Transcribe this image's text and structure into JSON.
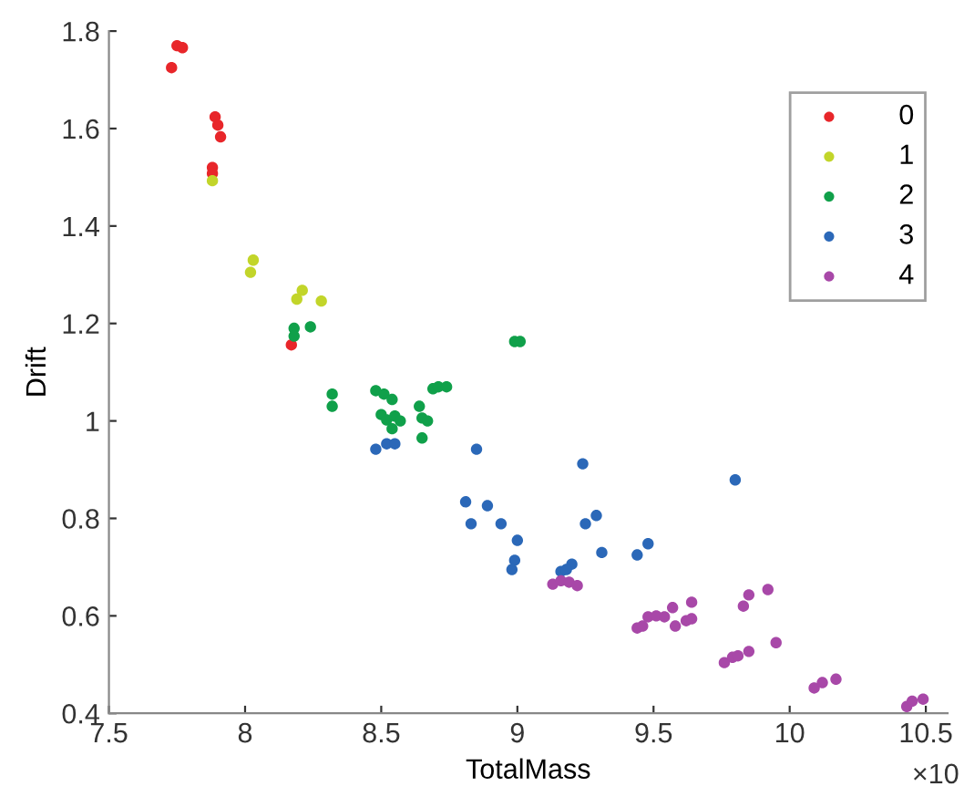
{
  "chart_data": {
    "type": "scatter",
    "xlabel": "TotalMass",
    "ylabel": "Drift",
    "annotations": [
      "×10"
    ],
    "xlim": [
      7.5,
      10.58
    ],
    "ylim": [
      0.4,
      1.8
    ],
    "xticks": [
      7.5,
      8,
      8.5,
      9,
      9.5,
      10,
      10.5
    ],
    "yticks": [
      0.4,
      0.6,
      0.8,
      1,
      1.2,
      1.4,
      1.6,
      1.8
    ],
    "grid": false,
    "legend": "top right",
    "marker": "circle",
    "series": [
      {
        "name": "0",
        "color": "#e8262a",
        "x": [
          7.73,
          7.75,
          7.77,
          7.89,
          7.9,
          7.91,
          7.88,
          7.88,
          8.17
        ],
        "values": [
          1.725,
          1.77,
          1.766,
          1.624,
          1.607,
          1.583,
          1.52,
          1.508,
          1.156
        ]
      },
      {
        "name": "1",
        "color": "#c2d52a",
        "x": [
          7.88,
          8.03,
          8.02,
          8.19,
          8.21,
          8.28
        ],
        "values": [
          1.493,
          1.33,
          1.305,
          1.25,
          1.268,
          1.246
        ]
      },
      {
        "name": "2",
        "color": "#10a04a",
        "x": [
          8.18,
          8.18,
          8.24,
          8.32,
          8.32,
          8.99,
          9.01,
          8.48,
          8.51,
          8.54,
          8.5,
          8.52,
          8.55,
          8.57,
          8.64,
          8.65,
          8.67,
          8.54,
          8.65,
          8.69,
          8.71,
          8.74
        ],
        "values": [
          1.19,
          1.174,
          1.193,
          1.055,
          1.03,
          1.163,
          1.163,
          1.062,
          1.055,
          1.044,
          1.013,
          1.002,
          1.01,
          1.0,
          1.03,
          1.006,
          1.0,
          0.984,
          0.965,
          1.066,
          1.07,
          1.07
        ]
      },
      {
        "name": "3",
        "color": "#2b68b8",
        "x": [
          8.48,
          8.52,
          8.55,
          8.85,
          9.24,
          8.81,
          8.89,
          8.83,
          8.94,
          9.0,
          8.99,
          8.98,
          9.25,
          9.29,
          9.31,
          9.44,
          9.48,
          9.2,
          9.8,
          9.16,
          9.18
        ],
        "values": [
          0.942,
          0.953,
          0.953,
          0.942,
          0.912,
          0.834,
          0.826,
          0.789,
          0.789,
          0.755,
          0.714,
          0.695,
          0.789,
          0.806,
          0.73,
          0.725,
          0.748,
          0.706,
          0.879,
          0.691,
          0.695
        ]
      },
      {
        "name": "4",
        "color": "#a848a8",
        "x": [
          9.13,
          9.16,
          9.19,
          9.22,
          9.44,
          9.46,
          9.48,
          9.51,
          9.54,
          9.57,
          9.58,
          9.62,
          9.64,
          9.64,
          9.76,
          9.79,
          9.81,
          9.85,
          9.95,
          9.83,
          9.85,
          9.92,
          10.09,
          10.12,
          10.17,
          10.43,
          10.45,
          10.49
        ],
        "values": [
          0.665,
          0.672,
          0.669,
          0.662,
          0.575,
          0.579,
          0.598,
          0.6,
          0.598,
          0.617,
          0.579,
          0.59,
          0.594,
          0.628,
          0.504,
          0.515,
          0.518,
          0.527,
          0.545,
          0.62,
          0.643,
          0.654,
          0.452,
          0.463,
          0.47,
          0.414,
          0.425,
          0.429
        ]
      }
    ]
  }
}
